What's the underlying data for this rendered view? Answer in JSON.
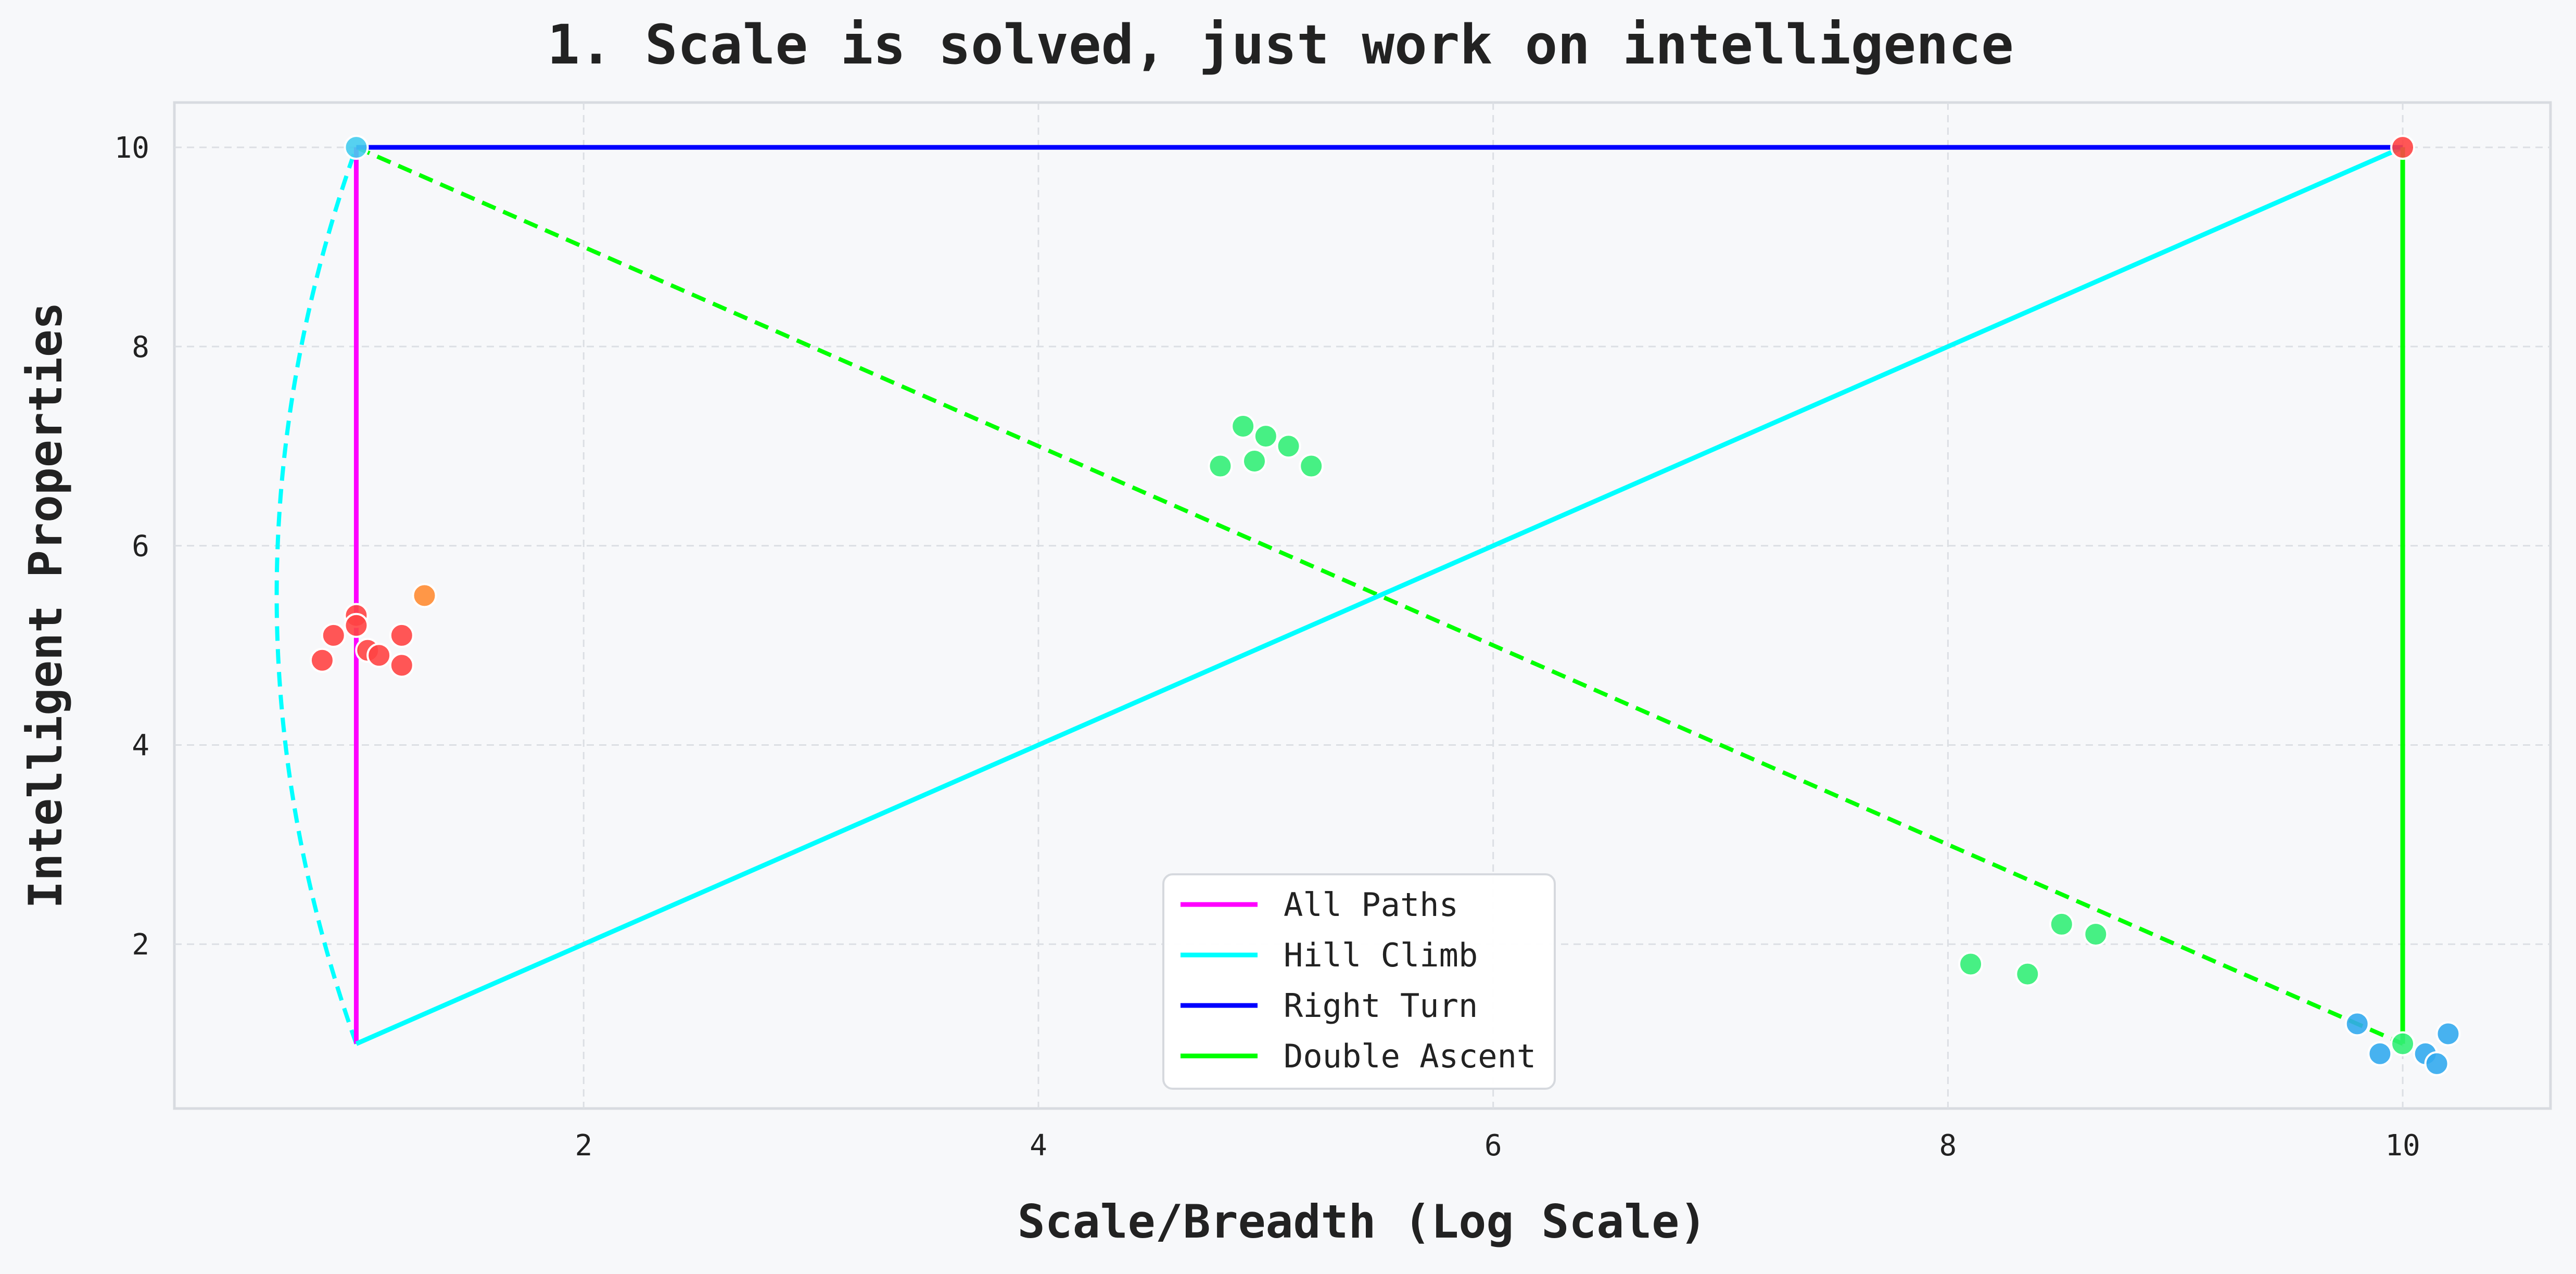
{
  "chart_data": {
    "type": "scatter",
    "title": "1. Scale is solved, just work on intelligence",
    "xlabel": "Scale/Breadth (Log Scale)",
    "ylabel": "Intelligent Properties",
    "xlim": [
      0.2,
      10.65
    ],
    "ylim": [
      0.35,
      10.45
    ],
    "x_ticks": [
      2,
      4,
      6,
      8,
      10
    ],
    "y_ticks": [
      2,
      4,
      6,
      8,
      10
    ],
    "x_tick_labels": [
      "2",
      "4",
      "6",
      "8",
      "10"
    ],
    "y_tick_labels": [
      "2",
      "4",
      "6",
      "8",
      "10"
    ],
    "grid": true,
    "legend_position": "bottom-center",
    "background_color": "#f7f8fa",
    "series": [
      {
        "name": "All Paths",
        "kind": "line",
        "style": "solid",
        "color": "#ff00ff",
        "points": [
          [
            1.0,
            1.0
          ],
          [
            1.0,
            10.0
          ]
        ]
      },
      {
        "name": "Hill Climb",
        "kind": "line",
        "style": "solid",
        "color": "#00ffff",
        "points": [
          [
            1.0,
            1.0
          ],
          [
            10.0,
            10.0
          ]
        ]
      },
      {
        "name": "Right Turn",
        "kind": "line",
        "style": "solid",
        "color": "#0000ff",
        "points": [
          [
            1.0,
            10.0
          ],
          [
            10.0,
            10.0
          ]
        ]
      },
      {
        "name": "Double Ascent",
        "kind": "line",
        "style": "solid",
        "color": "#00ff00",
        "points": [
          [
            10.0,
            1.0
          ],
          [
            10.0,
            10.0
          ]
        ]
      }
    ],
    "extra_lines": [
      {
        "style": "dashed",
        "color": "#00ff00",
        "points": [
          [
            1.0,
            10.0
          ],
          [
            10.0,
            1.0
          ]
        ]
      },
      {
        "style": "dashed",
        "color": "#00ffff",
        "curve": "arc",
        "points": [
          [
            1.0,
            1.0
          ],
          [
            0.65,
            5.5
          ],
          [
            1.0,
            10.0
          ]
        ]
      }
    ],
    "scatter_groups": [
      {
        "color": "#ff4444",
        "points": [
          [
            0.85,
            4.85
          ],
          [
            0.9,
            5.1
          ],
          [
            1.0,
            5.3
          ],
          [
            1.0,
            5.2
          ],
          [
            1.05,
            4.95
          ],
          [
            1.1,
            4.9
          ],
          [
            1.2,
            5.1
          ],
          [
            1.2,
            4.8
          ]
        ]
      },
      {
        "color": "#ff8c33",
        "points": [
          [
            1.3,
            5.5
          ]
        ]
      },
      {
        "color": "#33ee77",
        "points": [
          [
            4.8,
            6.8
          ],
          [
            4.9,
            7.2
          ],
          [
            4.95,
            6.85
          ],
          [
            5.0,
            7.1
          ],
          [
            5.1,
            7.0
          ],
          [
            5.2,
            6.8
          ]
        ]
      },
      {
        "color": "#33ee77",
        "points": [
          [
            8.1,
            1.8
          ],
          [
            8.35,
            1.7
          ],
          [
            8.5,
            2.2
          ],
          [
            8.65,
            2.1
          ]
        ]
      },
      {
        "color": "#33aaee",
        "points": [
          [
            9.8,
            1.2
          ],
          [
            9.9,
            0.9
          ],
          [
            10.1,
            0.9
          ],
          [
            10.15,
            0.8
          ],
          [
            10.2,
            1.1
          ]
        ]
      },
      {
        "color": "#33ee77",
        "points": [
          [
            10.0,
            1.0
          ]
        ]
      },
      {
        "color": "#44ccee",
        "points": [
          [
            1.0,
            10.0
          ]
        ]
      },
      {
        "color": "#ff4444",
        "points": [
          [
            10.0,
            10.0
          ]
        ]
      }
    ]
  }
}
